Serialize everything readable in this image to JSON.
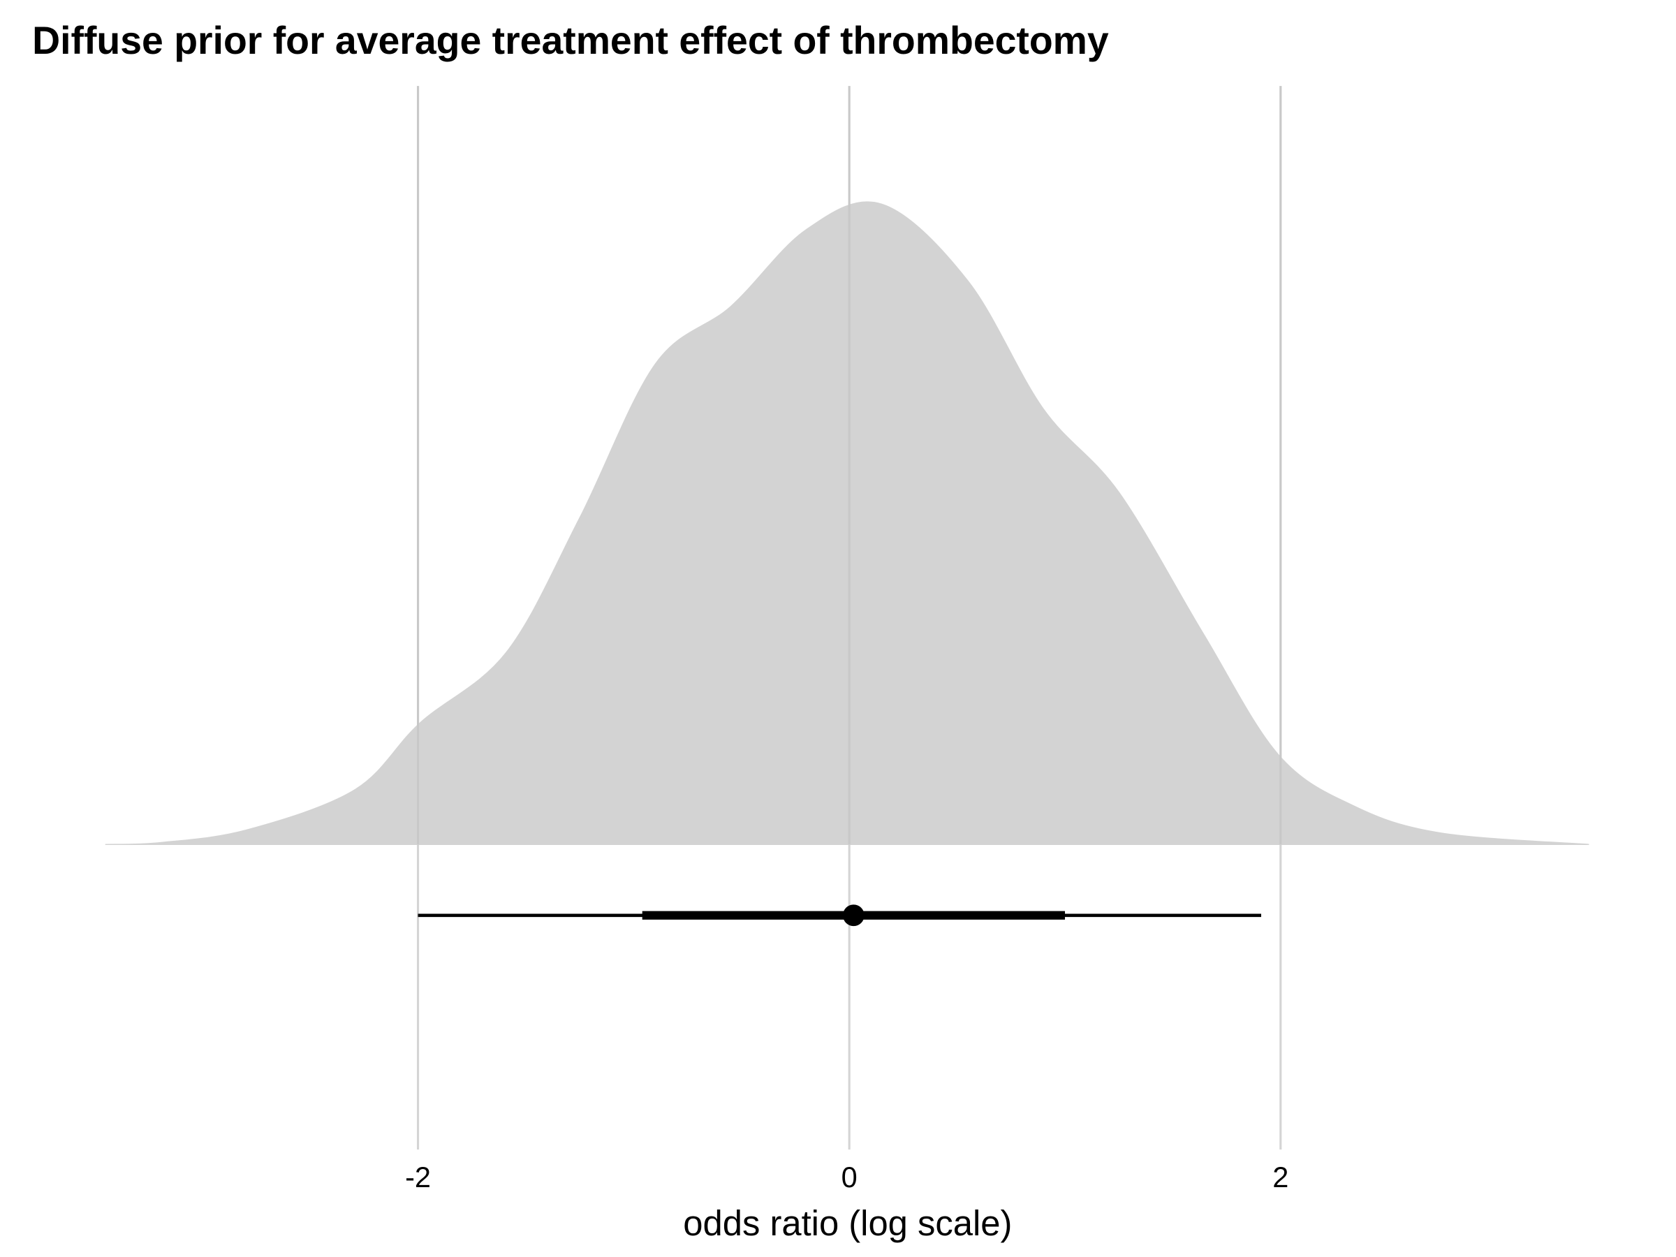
{
  "chart_data": {
    "type": "halfeye",
    "title": "Diffuse prior for average treatment effect of thrombectomy",
    "x_label": "odds ratio (log scale)",
    "xlim": [
      -3.45,
      3.43
    ],
    "xticks": [
      -2,
      0,
      2
    ],
    "ylim": [
      0,
      1
    ],
    "grid": true,
    "color": "#d3d3d3",
    "density": {
      "x": [
        -3.45,
        -3.19,
        -2.79,
        -2.29,
        -1.99,
        -1.59,
        -1.25,
        -0.9,
        -0.55,
        -0.2,
        0.15,
        0.55,
        0.9,
        1.25,
        1.64,
        1.99,
        2.34,
        2.74,
        3.43
      ],
      "y": [
        0,
        0.003,
        0.023,
        0.086,
        0.19,
        0.3,
        0.51,
        0.75,
        0.84,
        0.96,
        1,
        0.88,
        0.68,
        0.55,
        0.33,
        0.14,
        0.06,
        0.018,
        0
      ]
    },
    "interval": {
      "median": 0.02,
      "inner": [
        -0.96,
        1.0
      ],
      "outer": [
        -2.0,
        1.91
      ]
    }
  }
}
